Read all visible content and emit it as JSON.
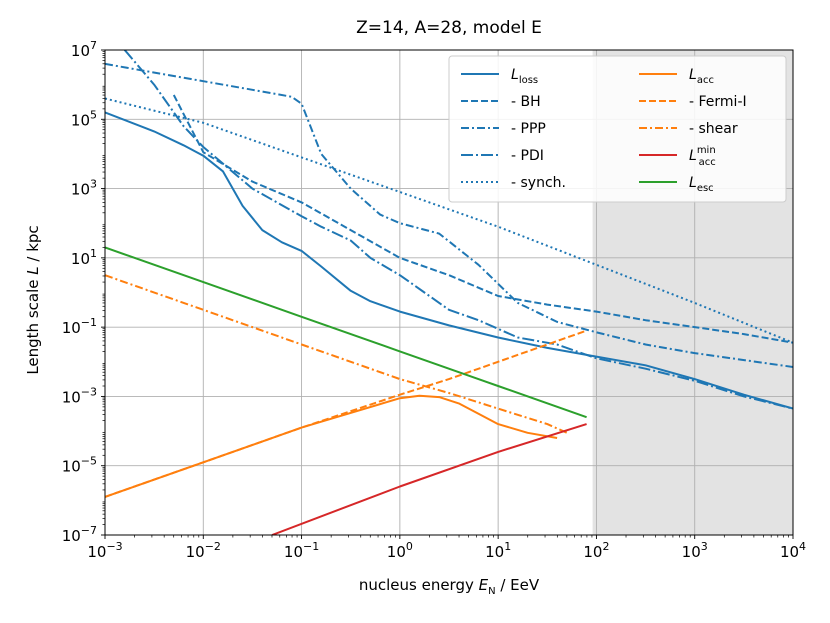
{
  "chart_data": {
    "type": "line",
    "title": "Z=14, A=28, model E",
    "xlabel": {
      "pre": "nucleus energy ",
      "var": "E",
      "sub": "N",
      "post": " / EeV"
    },
    "ylabel": {
      "pre": "Length scale ",
      "var": "L",
      "post": " / kpc"
    },
    "xscale": "log",
    "yscale": "log",
    "xlim_exp": [
      -3,
      4
    ],
    "ylim_exp": [
      -7,
      7
    ],
    "xticks": [
      {
        "base": "10",
        "exp": "−3",
        "value": -3
      },
      {
        "base": "10",
        "exp": "−2",
        "value": -2
      },
      {
        "base": "10",
        "exp": "−1",
        "value": -1
      },
      {
        "base": "10",
        "exp": "0",
        "value": 0
      },
      {
        "base": "10",
        "exp": "1",
        "value": 1
      },
      {
        "base": "10",
        "exp": "2",
        "value": 2
      },
      {
        "base": "10",
        "exp": "3",
        "value": 3
      },
      {
        "base": "10",
        "exp": "4",
        "value": 4
      }
    ],
    "yticks": [
      {
        "base": "10",
        "exp": "−7",
        "value": -7
      },
      {
        "base": "10",
        "exp": "−5",
        "value": -5
      },
      {
        "base": "10",
        "exp": "−3",
        "value": -3
      },
      {
        "base": "10",
        "exp": "−1",
        "value": -1
      },
      {
        "base": "10",
        "exp": "1",
        "value": 1
      },
      {
        "base": "10",
        "exp": "3",
        "value": 3
      },
      {
        "base": "10",
        "exp": "5",
        "value": 5
      },
      {
        "base": "10",
        "exp": "7",
        "value": 7
      }
    ],
    "shaded_region_x_exp": [
      1.9614,
      4
    ],
    "grid": true,
    "legend_position": "top-right",
    "legend": [
      {
        "series": "L_loss",
        "label_main": "L",
        "label_sub": "loss",
        "label_sup": "",
        "label_text": ""
      },
      {
        "series": "BH",
        "label_main": "",
        "label_sub": "",
        "label_sup": "",
        "label_text": "  - BH"
      },
      {
        "series": "PPP",
        "label_main": "",
        "label_sub": "",
        "label_sup": "",
        "label_text": "  - PPP"
      },
      {
        "series": "PDI",
        "label_main": "",
        "label_sub": "",
        "label_sup": "",
        "label_text": "  - PDI"
      },
      {
        "series": "synch",
        "label_main": "",
        "label_sub": "",
        "label_sup": "",
        "label_text": "  - synch."
      },
      {
        "series": "L_acc",
        "label_main": "L",
        "label_sub": "acc",
        "label_sup": "",
        "label_text": ""
      },
      {
        "series": "Fermi-I",
        "label_main": "",
        "label_sub": "",
        "label_sup": "",
        "label_text": "  - Fermi-I"
      },
      {
        "series": "shear",
        "label_main": "",
        "label_sub": "",
        "label_sup": "",
        "label_text": "  - shear"
      },
      {
        "series": "L_acc_min",
        "label_main": "L",
        "label_sub": "acc",
        "label_sup": "min",
        "label_text": ""
      },
      {
        "series": "L_esc",
        "label_main": "L",
        "label_sub": "esc",
        "label_sup": "",
        "label_text": ""
      }
    ],
    "series": [
      {
        "name": "L_loss",
        "color": "#1f77b4",
        "dash": "solid",
        "points": [
          [
            -3,
            5.2
          ],
          [
            -2.5,
            4.65
          ],
          [
            -2.2,
            4.25
          ],
          [
            -2,
            3.95
          ],
          [
            -1.8,
            3.5
          ],
          [
            -1.6,
            2.5
          ],
          [
            -1.4,
            1.8
          ],
          [
            -1.2,
            1.45
          ],
          [
            -1,
            1.2
          ],
          [
            -0.8,
            0.75
          ],
          [
            -0.5,
            0.05
          ],
          [
            -0.3,
            -0.25
          ],
          [
            0,
            -0.55
          ],
          [
            0.5,
            -0.95
          ],
          [
            1,
            -1.3
          ],
          [
            1.5,
            -1.6
          ],
          [
            2,
            -1.85
          ],
          [
            2.5,
            -2.1
          ],
          [
            3,
            -2.5
          ],
          [
            3.5,
            -2.95
          ],
          [
            4,
            -3.35
          ]
        ]
      },
      {
        "name": "BH",
        "color": "#1f77b4",
        "dash": "dashed",
        "points": [
          [
            -2.3,
            5.7
          ],
          [
            -2,
            4.05
          ],
          [
            -1.5,
            3.2
          ],
          [
            -1,
            2.6
          ],
          [
            -0.5,
            1.8
          ],
          [
            0,
            1
          ],
          [
            0.5,
            0.5
          ],
          [
            1,
            -0.1
          ],
          [
            1.5,
            -0.35
          ],
          [
            2,
            -0.55
          ],
          [
            2.5,
            -0.8
          ],
          [
            3,
            -1.0
          ],
          [
            3.5,
            -1.2
          ],
          [
            4,
            -1.45
          ]
        ]
      },
      {
        "name": "PPP",
        "color": "#1f77b4",
        "dash": "dashdot",
        "points": [
          [
            -3,
            6.6
          ],
          [
            -2,
            6.1
          ],
          [
            -1.5,
            5.85
          ],
          [
            -1.1,
            5.65
          ],
          [
            -1,
            5.45
          ],
          [
            -0.8,
            4.0
          ],
          [
            -0.5,
            3.0
          ],
          [
            -0.2,
            2.25
          ],
          [
            0,
            2.0
          ],
          [
            0.4,
            1.7
          ],
          [
            0.8,
            0.8
          ],
          [
            1.2,
            -0.3
          ],
          [
            1.6,
            -0.85
          ],
          [
            2,
            -1.15
          ],
          [
            2.5,
            -1.5
          ],
          [
            3,
            -1.75
          ],
          [
            4,
            -2.15
          ]
        ]
      },
      {
        "name": "PDI",
        "color": "#1f77b4",
        "dash": "loosedashdot",
        "points": [
          [
            -2.8,
            7.0
          ],
          [
            -2.5,
            6.0
          ],
          [
            -2.2,
            4.8
          ],
          [
            -2,
            4.2
          ],
          [
            -1.5,
            3.0
          ],
          [
            -1,
            2.2
          ],
          [
            -0.8,
            1.9
          ],
          [
            -0.5,
            1.5
          ],
          [
            -0.3,
            1.0
          ],
          [
            0,
            0.5
          ],
          [
            0.5,
            -0.5
          ],
          [
            0.8,
            -0.8
          ],
          [
            1.2,
            -1.3
          ],
          [
            1.6,
            -1.5
          ],
          [
            2,
            -1.9
          ],
          [
            2.5,
            -2.2
          ],
          [
            3,
            -2.55
          ],
          [
            3.5,
            -3.0
          ],
          [
            4,
            -3.35
          ]
        ]
      },
      {
        "name": "synch",
        "color": "#1f77b4",
        "dash": "dotted",
        "points": [
          [
            -3,
            5.6
          ],
          [
            -2,
            4.9
          ],
          [
            -1,
            3.9
          ],
          [
            0,
            2.9
          ],
          [
            1,
            1.9
          ],
          [
            2,
            0.8
          ],
          [
            3,
            -0.3
          ],
          [
            4,
            -1.45
          ]
        ]
      },
      {
        "name": "L_acc",
        "color": "#ff7f0e",
        "dash": "solid",
        "points": [
          [
            -3,
            -5.9
          ],
          [
            -2,
            -4.9
          ],
          [
            -1,
            -3.9
          ],
          [
            0,
            -3.05
          ],
          [
            0.2,
            -2.98
          ],
          [
            0.4,
            -3.02
          ],
          [
            0.6,
            -3.2
          ],
          [
            0.8,
            -3.5
          ],
          [
            1,
            -3.8
          ],
          [
            1.3,
            -4.05
          ],
          [
            1.6,
            -4.2
          ]
        ]
      },
      {
        "name": "Fermi-I",
        "color": "#ff7f0e",
        "dash": "dashed",
        "points": [
          [
            -3,
            -5.9
          ],
          [
            -2,
            -4.9
          ],
          [
            -1,
            -3.9
          ],
          [
            0,
            -2.95
          ],
          [
            0.5,
            -2.5
          ],
          [
            1,
            -2.0
          ],
          [
            1.5,
            -1.5
          ],
          [
            1.9,
            -1.1
          ]
        ]
      },
      {
        "name": "shear",
        "color": "#ff7f0e",
        "dash": "dashdot",
        "points": [
          [
            -3,
            0.5
          ],
          [
            -2,
            -0.5
          ],
          [
            -1,
            -1.5
          ],
          [
            0,
            -2.5
          ],
          [
            0.5,
            -2.9
          ],
          [
            1,
            -3.35
          ],
          [
            1.5,
            -3.8
          ],
          [
            1.7,
            -4.05
          ]
        ]
      },
      {
        "name": "L_acc_min",
        "color": "#d62728",
        "dash": "solid",
        "points": [
          [
            -1.3,
            -7.0
          ],
          [
            0,
            -5.6
          ],
          [
            1,
            -4.6
          ],
          [
            1.9,
            -3.8
          ]
        ]
      },
      {
        "name": "L_esc",
        "color": "#2ca02c",
        "dash": "solid",
        "points": [
          [
            -3,
            1.3
          ],
          [
            -2,
            0.3
          ],
          [
            -1,
            -0.7
          ],
          [
            0,
            -1.7
          ],
          [
            1,
            -2.7
          ],
          [
            1.9,
            -3.6
          ]
        ]
      }
    ]
  }
}
